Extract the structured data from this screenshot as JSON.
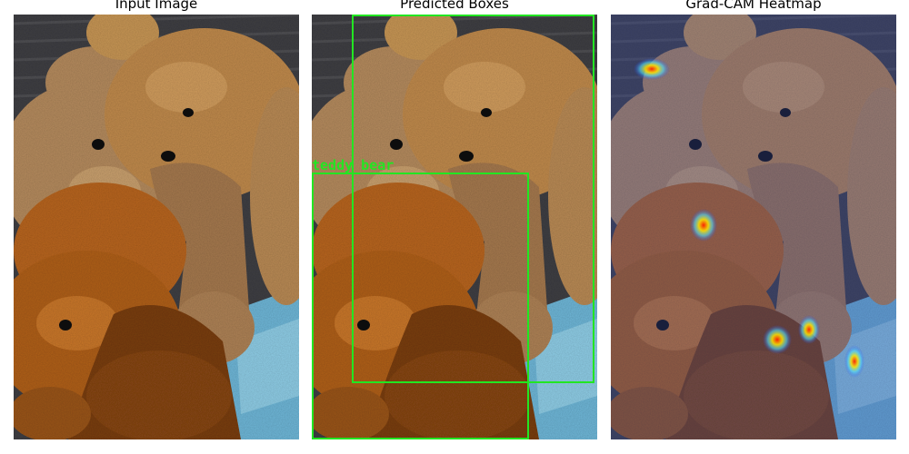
{
  "panels": [
    {
      "title": "Input Image"
    },
    {
      "title": "Predicted Boxes"
    },
    {
      "title": "Grad-CAM Heatmap"
    }
  ],
  "detections": [
    {
      "label": "teddy bear"
    }
  ],
  "colors": {
    "box": "#22e622",
    "bear_light": "#b58b5e",
    "bear_tan": "#c79655",
    "bear_orange": "#b8651e",
    "bear_dark": "#7a3e12",
    "couch": "#4a4a4a",
    "cloth": "#6fb7d8"
  },
  "icons": [
    "teddy-bear-photo",
    "bounding-box",
    "heatmap-overlay"
  ]
}
